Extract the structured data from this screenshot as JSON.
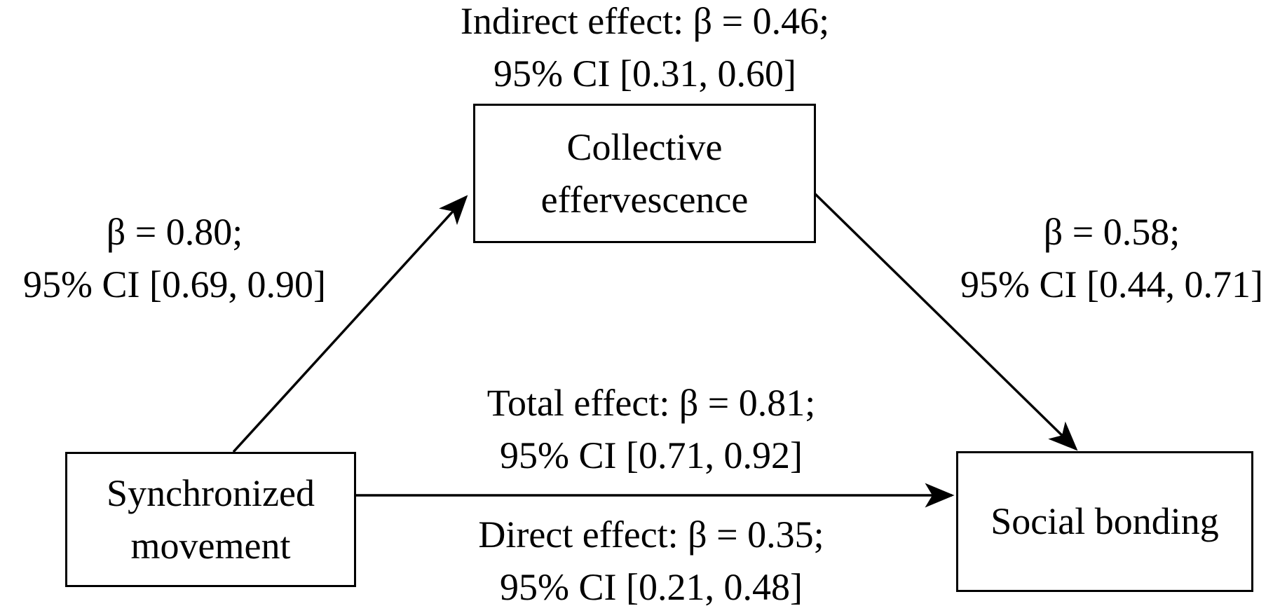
{
  "colors": {
    "ink": "#000000",
    "background": "#ffffff"
  },
  "nodes": {
    "synchronized_movement": {
      "line1": "Synchronized",
      "line2": "movement"
    },
    "collective_effervescence": {
      "line1": "Collective",
      "line2": "effervescence"
    },
    "social_bonding": {
      "line1": "Social bonding"
    }
  },
  "paths": {
    "a": {
      "line1": "β = 0.80;",
      "line2": "95% CI [0.69, 0.90]"
    },
    "b": {
      "line1": "β = 0.58;",
      "line2": "95% CI [0.44, 0.71]"
    },
    "indirect": {
      "line1": "Indirect effect: β = 0.46;",
      "line2": "95% CI [0.31, 0.60]"
    },
    "total": {
      "line1": "Total effect: β = 0.81;",
      "line2": "95% CI [0.71, 0.92]"
    },
    "direct": {
      "line1": "Direct effect: β = 0.35;",
      "line2": "95% CI [0.21, 0.48]"
    }
  }
}
